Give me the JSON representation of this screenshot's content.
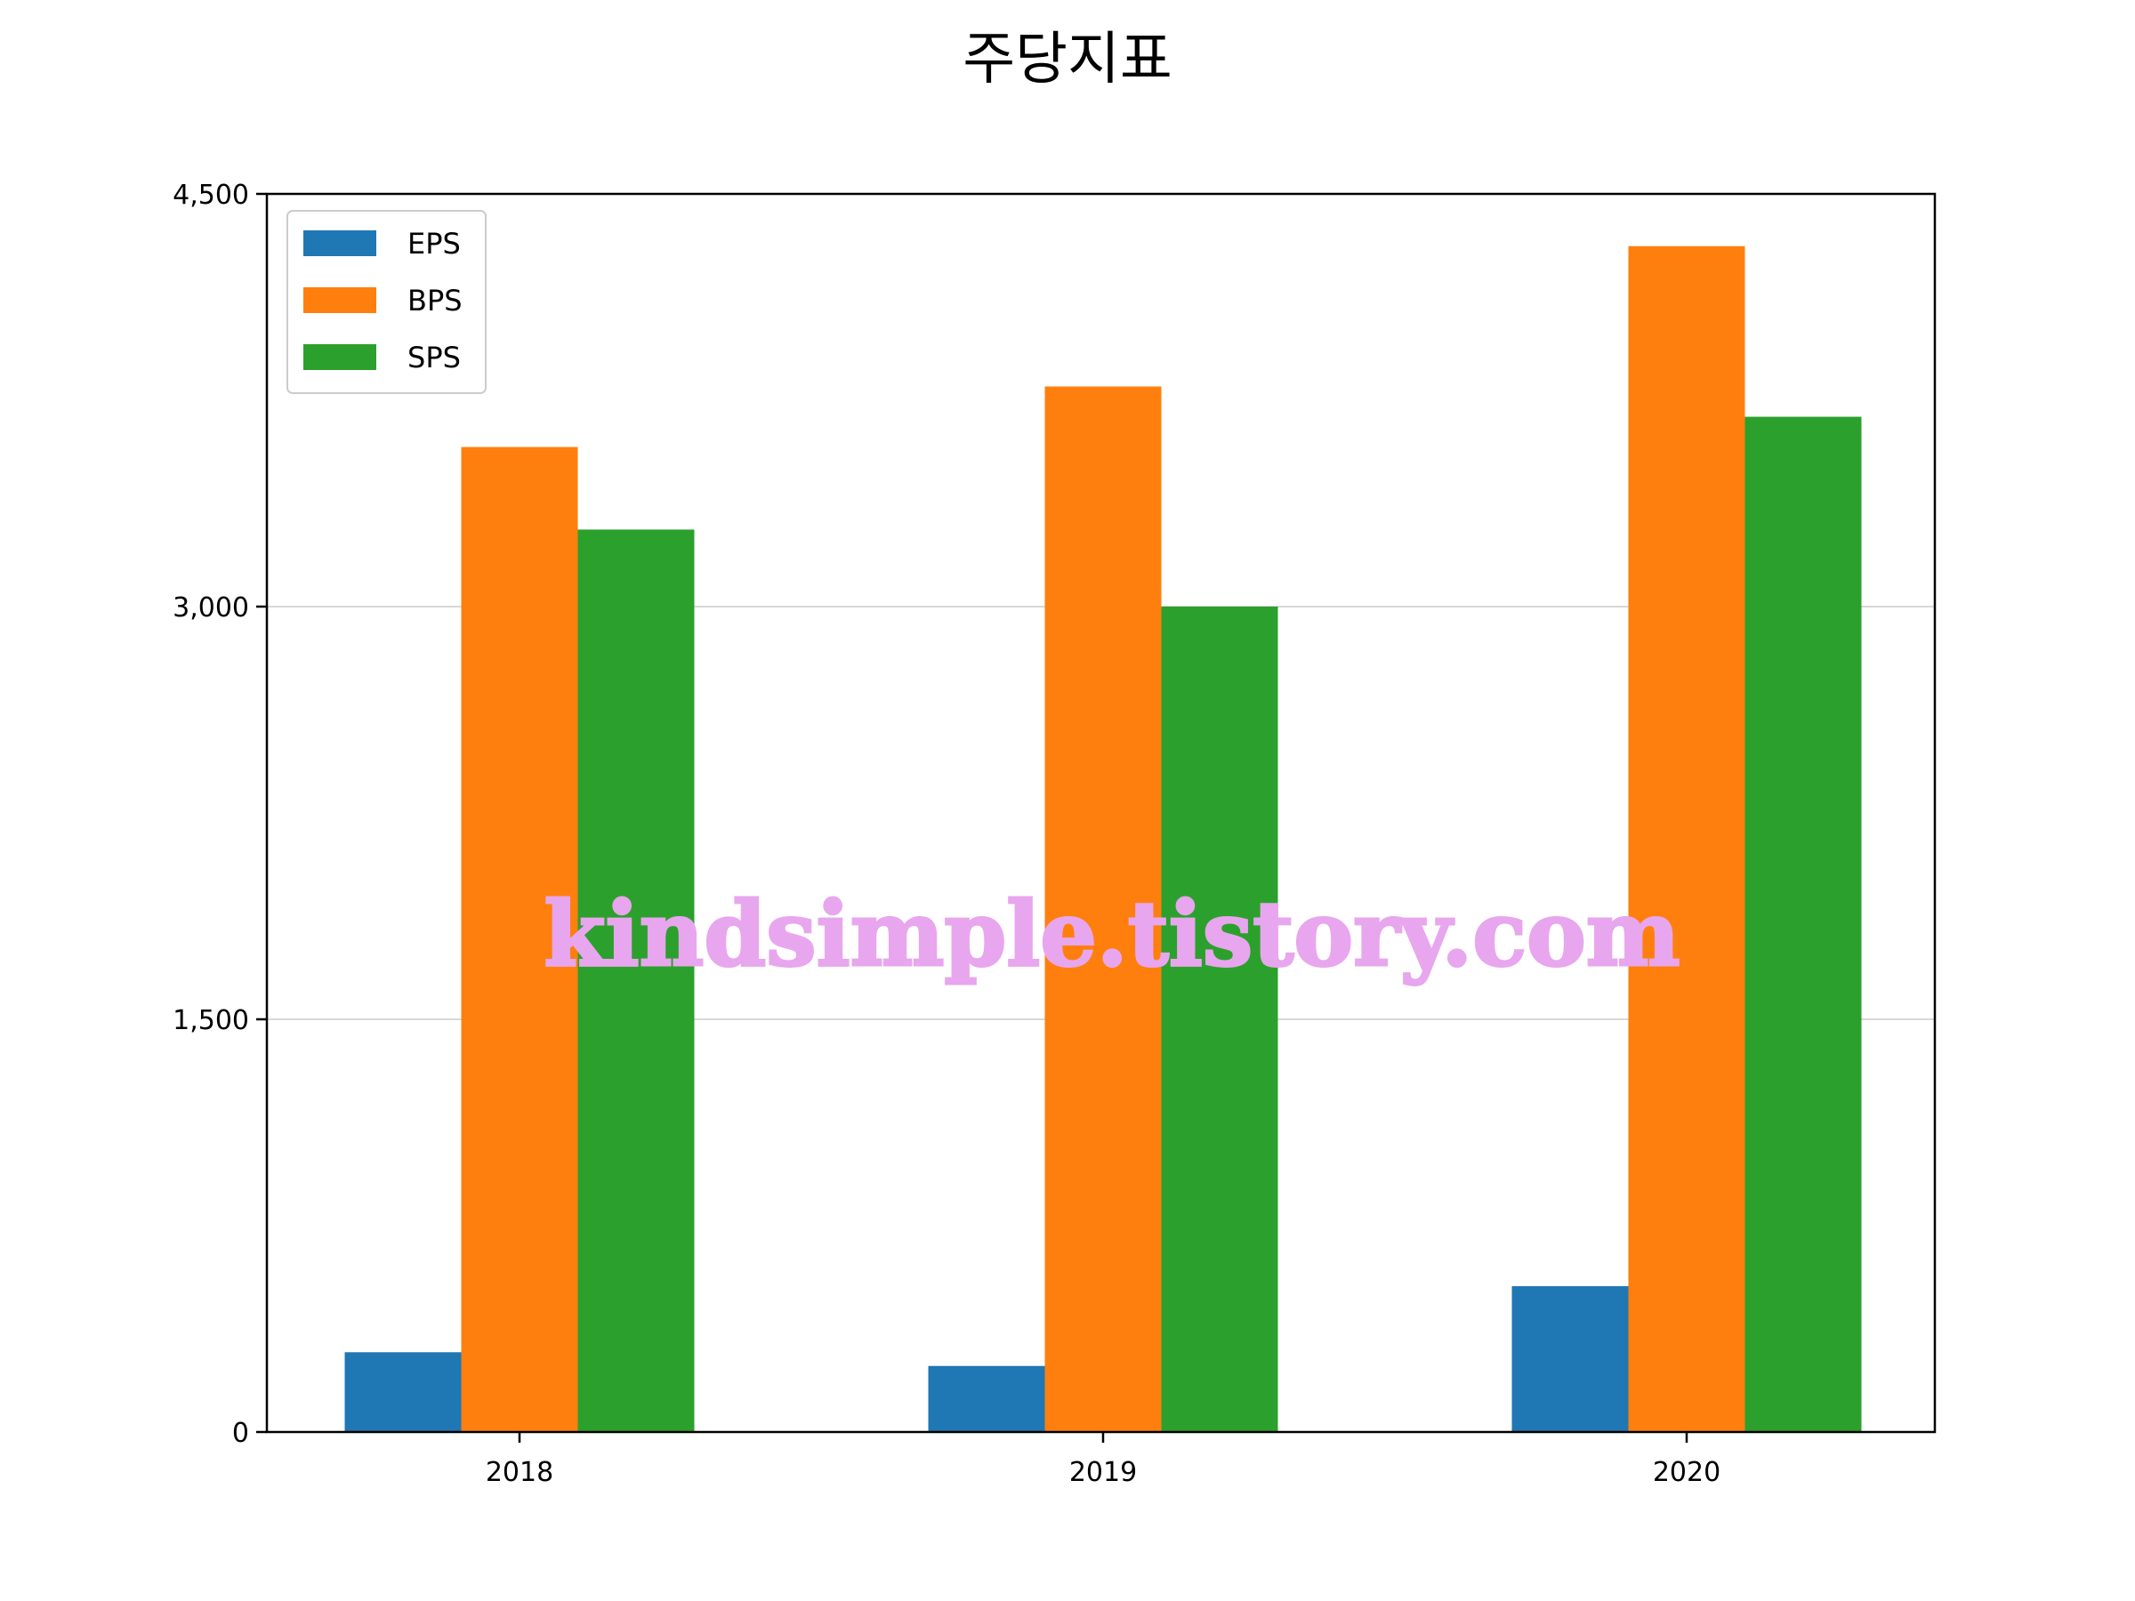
{
  "chart_data": {
    "type": "bar",
    "title": "주당지표",
    "xlabel": "",
    "ylabel": "",
    "categories": [
      "2018",
      "2019",
      "2020"
    ],
    "series": [
      {
        "name": "EPS",
        "values": [
          290,
          240,
          530
        ],
        "color": "#1f77b4"
      },
      {
        "name": "BPS",
        "values": [
          3580,
          3800,
          4310
        ],
        "color": "#ff7f0e"
      },
      {
        "name": "SPS",
        "values": [
          3280,
          3000,
          3690
        ],
        "color": "#2ca02c"
      }
    ],
    "ylim": [
      0,
      4500
    ],
    "yticks": [
      0,
      1500,
      3000,
      4500
    ],
    "ytick_labels": [
      "0",
      "1,500",
      "3,000",
      "4,500"
    ],
    "grid": "horizontal",
    "legend_position": "top-left"
  },
  "watermark": "kindsimple.tistory.com"
}
